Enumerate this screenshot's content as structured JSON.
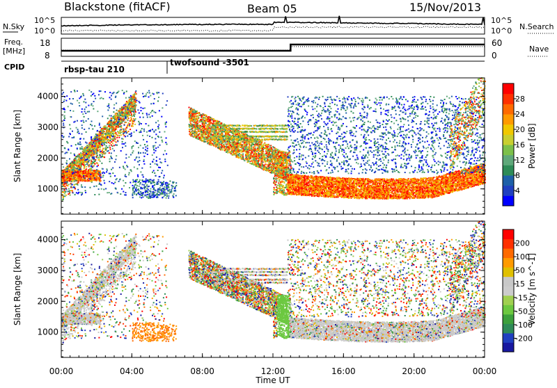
{
  "header": {
    "title": "Blackstone (fitACF)",
    "beam": "Beam 05",
    "date": "15/Nov/2013"
  },
  "status_panels": {
    "nsky_label": "N.Sky",
    "nsky_ticks": [
      "10^5",
      "10^0"
    ],
    "nsearch_label": "N.Search",
    "nsearch_ticks": [
      "10^5",
      "10^0"
    ],
    "freq_label": "Freq.",
    "freq_unit": "[MHz]",
    "freq_ticks": [
      "18",
      "8"
    ],
    "nave_label": "Nave",
    "nave_ticks": [
      "60",
      "0"
    ],
    "cpid_label": "CPID",
    "cpid_segments": [
      {
        "name": "rbsp-tau 210",
        "start_hour": 0
      },
      {
        "name": "twofsound -3501",
        "start_hour": 6
      }
    ]
  },
  "chart_data": [
    {
      "type": "heatmap",
      "panel": "power",
      "ylabel": "Slant Range [km]",
      "xlabel": "",
      "xlim_hours": [
        0,
        24
      ],
      "ylim": [
        180,
        4600
      ],
      "yticks": [
        "1000",
        "2000",
        "3000",
        "4000"
      ],
      "colorbar": {
        "label": "Power [dB]",
        "ticks": [
          "4",
          "8",
          "12",
          "16",
          "20",
          "24",
          "28"
        ],
        "colors": [
          "#0000ff",
          "#2040c0",
          "#1e60a8",
          "#2e8b57",
          "#5fa87a",
          "#7cc04a",
          "#c8cf30",
          "#f0c800",
          "#ff9a00",
          "#ff6a00",
          "#ff3000",
          "#ff0000"
        ]
      },
      "features": [
        {
          "name": "dense backscatter band",
          "from_hour": 12.8,
          "to_hour": 24.0,
          "range_km": [
            800,
            1500
          ],
          "level": "high"
        },
        {
          "name": "descending echo",
          "from_hour": 7.2,
          "to_hour": 12.8,
          "range_km": [
            3200,
            800
          ],
          "level": "medium"
        },
        {
          "name": "ascending echo",
          "from_hour": 0.0,
          "to_hour": 4.2,
          "range_km": [
            1300,
            4000
          ],
          "level": "high"
        }
      ]
    },
    {
      "type": "heatmap",
      "panel": "velocity",
      "ylabel": "Slant Range [km]",
      "xlabel": "Time UT",
      "xticks": [
        "00:00",
        "04:00",
        "08:00",
        "12:00",
        "16:00",
        "20:00",
        "00:00"
      ],
      "xlim_hours": [
        0,
        24
      ],
      "ylim": [
        180,
        4600
      ],
      "yticks": [
        "1000",
        "2000",
        "3000",
        "4000"
      ],
      "colorbar": {
        "label": "Velocity [m s^-1]",
        "ticks": [
          "200",
          "100",
          "50",
          "15",
          "-15",
          "-50",
          "-100",
          "-200"
        ],
        "colors": [
          "#1818a0",
          "#2040c0",
          "#2e8b57",
          "#3ca03c",
          "#6cc840",
          "#a0d050",
          "#cccccc",
          "#c8c8c8",
          "#e0c000",
          "#ff9a00",
          "#ff6a00",
          "#ff3000",
          "#ff0000"
        ]
      },
      "features": [
        {
          "name": "ground scatter",
          "from_hour": 12.8,
          "to_hour": 24.0,
          "range_km": [
            800,
            1500
          ],
          "velocity": "~0"
        },
        {
          "name": "mixed scatter",
          "from_hour": 7.2,
          "to_hour": 12.8,
          "range_km": [
            3200,
            800
          ],
          "velocity": "mixed"
        }
      ]
    }
  ]
}
